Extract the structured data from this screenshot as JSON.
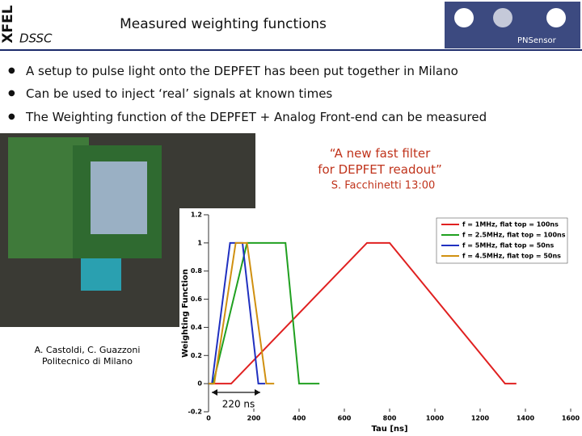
{
  "header": {
    "logo": "XFEL",
    "project": "DSSC",
    "title": "Measured weighting functions",
    "sponsor": "PNSensor"
  },
  "bullets": [
    "A setup to pulse light onto the DEPFET has been put together in Milano",
    "Can be used to inject ‘real’ signals at known times",
    "The Weighting function of the DEPFET + Analog Front-end can be measured"
  ],
  "quote": {
    "text": "“A new fast filter for DEPFET readout”",
    "author": "S. Facchinetti 13:00"
  },
  "photo_caption": {
    "line1": "A. Castoldi, C. Guazzoni",
    "line2": "Politecnico di Milano"
  },
  "chart_data": {
    "type": "line",
    "xlabel": "Tau [ns]",
    "ylabel": "Weighting Function",
    "xlim": [
      0,
      1600
    ],
    "xticks": [
      0,
      200,
      400,
      600,
      800,
      1000,
      1200,
      1400,
      1600
    ],
    "ylim": [
      -0.2,
      1.2
    ],
    "yticks": [
      -0.2,
      0,
      0.2,
      0.4,
      0.6,
      0.8,
      1,
      1.2
    ],
    "grid": false,
    "legend": "upper right",
    "annotation": "220 ns",
    "series": [
      {
        "name": "f = 1MHz, flat top = 100ns",
        "color": "#e02020",
        "x": [
          0,
          100,
          700,
          800,
          1310,
          1360
        ],
        "values": [
          0,
          0,
          1,
          1,
          0,
          0
        ]
      },
      {
        "name": "f = 2.5MHz, flat top = 100ns",
        "color": "#20a020",
        "x": [
          0,
          20,
          170,
          340,
          400,
          490
        ],
        "values": [
          0,
          0,
          1,
          1,
          0,
          0
        ]
      },
      {
        "name": "f = 5MHz, flat top = 50ns",
        "color": "#2030c0",
        "x": [
          0,
          15,
          95,
          150,
          220,
          250
        ],
        "values": [
          0,
          0,
          1,
          1,
          0,
          0
        ]
      },
      {
        "name": "f = 4.5MHz, flat top = 50ns",
        "color": "#d09010",
        "x": [
          0,
          25,
          120,
          170,
          255,
          290
        ],
        "values": [
          0,
          0,
          1,
          1,
          0,
          0
        ]
      }
    ]
  }
}
